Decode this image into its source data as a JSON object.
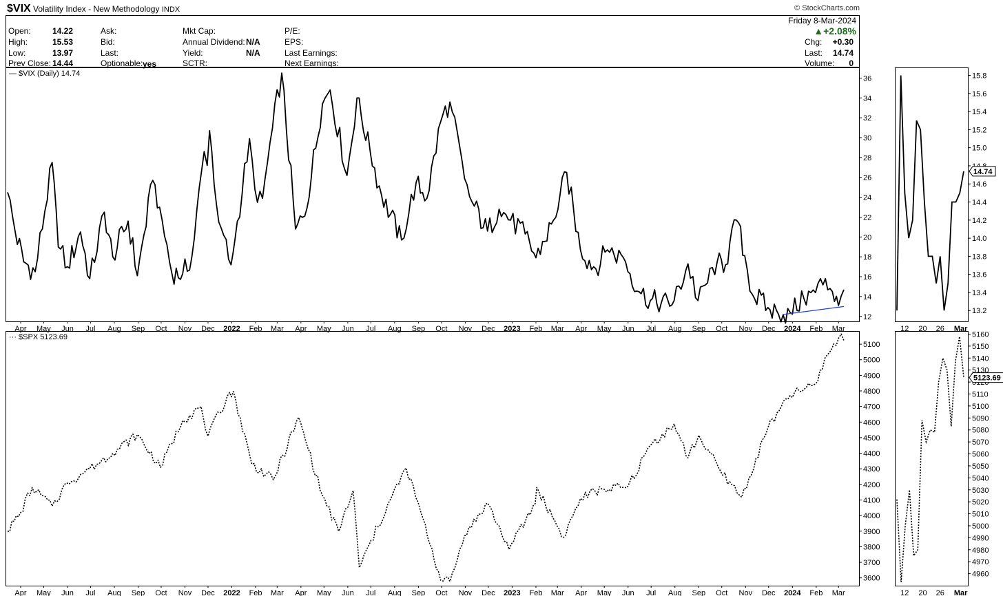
{
  "header": {
    "symbol": "$VIX",
    "name": "Volatility Index - New Methodology",
    "exchange": "INDX",
    "brand": "© StockCharts.com"
  },
  "quote": {
    "open_label": "Open:",
    "open": "14.22",
    "high_label": "High:",
    "high": "15.53",
    "low_label": "Low:",
    "low": "13.97",
    "prevclose_label": "Prev Close:",
    "prevclose": "14.44",
    "ask_label": "Ask:",
    "bid_label": "Bid:",
    "last_label": "Last:",
    "optionable_label": "Optionable:",
    "optionable": "yes",
    "mktcap_label": "Mkt Cap:",
    "div_label": "Annual Dividend:",
    "div": "N/A",
    "yield_label": "Yield:",
    "yield": "N/A",
    "sctr_label": "SCTR:",
    "pe_label": "P/E:",
    "eps_label": "EPS:",
    "lastearn_label": "Last Earnings:",
    "nextearn_label": "Next Earnings:",
    "date": "Friday  8-Mar-2024",
    "pct": "▲+2.08%",
    "chg_label": "Chg:",
    "chg": "+0.30",
    "last2_label": "Last:",
    "last2": "14.74",
    "volume_label": "Volume:",
    "volume": "0"
  },
  "chart_data": [
    {
      "type": "line",
      "legend": "$VIX (Daily) 14.74",
      "last_value_label": "14.74",
      "ylim": [
        11.5,
        37
      ],
      "yticks": [
        12,
        14,
        16,
        18,
        20,
        22,
        24,
        26,
        28,
        30,
        32,
        34,
        36
      ],
      "x_labels": [
        "Apr",
        "May",
        "Jun",
        "Jul",
        "Aug",
        "Sep",
        "Oct",
        "Nov",
        "Dec",
        "2022",
        "Feb",
        "Mar",
        "Apr",
        "May",
        "Jun",
        "Jul",
        "Aug",
        "Sep",
        "Oct",
        "Nov",
        "Dec",
        "2023",
        "Feb",
        "Mar",
        "Apr",
        "May",
        "Jun",
        "Jul",
        "Aug",
        "Sep",
        "Oct",
        "Nov",
        "Dec",
        "2024",
        "Feb",
        "Mar"
      ],
      "x_bold": [
        "2022",
        "2023",
        "2024"
      ],
      "x_start": "2021-03-15",
      "x_end": "2024-03-08",
      "series": [
        {
          "color": "#000000",
          "style": "solid",
          "points": [
            [
              "2021-03-15",
              24.5
            ],
            [
              "2021-03-25",
              20.5
            ],
            [
              "2021-04-05",
              17.5
            ],
            [
              "2021-04-20",
              16.5
            ],
            [
              "2021-05-12",
              27.5
            ],
            [
              "2021-05-20",
              19
            ],
            [
              "2021-06-01",
              17
            ],
            [
              "2021-06-18",
              20.5
            ],
            [
              "2021-06-30",
              15.8
            ],
            [
              "2021-07-19",
              22.5
            ],
            [
              "2021-07-30",
              18
            ],
            [
              "2021-08-19",
              21.6
            ],
            [
              "2021-08-31",
              16.1
            ],
            [
              "2021-09-20",
              25.7
            ],
            [
              "2021-09-29",
              23
            ],
            [
              "2021-10-15",
              16.3
            ],
            [
              "2021-10-29",
              16.3
            ],
            [
              "2021-11-10",
              18
            ],
            [
              "2021-11-26",
              28.6
            ],
            [
              "2021-11-30",
              27.2
            ],
            [
              "2021-12-03",
              30.7
            ],
            [
              "2021-12-15",
              21.5
            ],
            [
              "2021-12-31",
              17.2
            ],
            [
              "2022-01-05",
              19.7
            ],
            [
              "2022-01-24",
              29.9
            ],
            [
              "2022-01-31",
              24.8
            ],
            [
              "2022-02-10",
              23.9
            ],
            [
              "2022-02-23",
              31
            ],
            [
              "2022-03-07",
              36.5
            ],
            [
              "2022-03-25",
              20.8
            ],
            [
              "2022-04-06",
              22.1
            ],
            [
              "2022-04-29",
              33.4
            ],
            [
              "2022-05-09",
              34.8
            ],
            [
              "2022-05-31",
              26.2
            ],
            [
              "2022-06-13",
              34
            ],
            [
              "2022-06-30",
              28.7
            ],
            [
              "2022-07-15",
              24.2
            ],
            [
              "2022-08-10",
              19.7
            ],
            [
              "2022-08-29",
              25.5
            ],
            [
              "2022-09-12",
              23.9
            ],
            [
              "2022-09-30",
              31.6
            ],
            [
              "2022-10-12",
              33.6
            ],
            [
              "2022-10-31",
              25.9
            ],
            [
              "2022-11-10",
              23.5
            ],
            [
              "2022-11-30",
              20.6
            ],
            [
              "2022-12-15",
              22.8
            ],
            [
              "2022-12-30",
              21.7
            ],
            [
              "2023-01-18",
              20.3
            ],
            [
              "2023-02-01",
              17.9
            ],
            [
              "2023-02-24",
              21.7
            ],
            [
              "2023-03-13",
              26.5
            ],
            [
              "2023-03-31",
              18.7
            ],
            [
              "2023-04-20",
              16.8
            ],
            [
              "2023-05-05",
              18.7
            ],
            [
              "2023-05-26",
              17.9
            ],
            [
              "2023-06-15",
              14.5
            ],
            [
              "2023-06-30",
              13.6
            ],
            [
              "2023-07-14",
              13.3
            ],
            [
              "2023-07-31",
              13.6
            ],
            [
              "2023-08-18",
              17.3
            ],
            [
              "2023-08-31",
              13.6
            ],
            [
              "2023-09-25",
              17.5
            ],
            [
              "2023-10-06",
              17.2
            ],
            [
              "2023-10-20",
              21.7
            ],
            [
              "2023-10-31",
              18.1
            ],
            [
              "2023-11-10",
              14.2
            ],
            [
              "2023-11-30",
              12.9
            ],
            [
              "2023-12-14",
              12.2
            ],
            [
              "2023-12-29",
              12.4
            ],
            [
              "2024-01-16",
              13.8
            ],
            [
              "2024-01-31",
              14.4
            ],
            [
              "2024-02-13",
              15.8
            ],
            [
              "2024-02-22",
              14.5
            ],
            [
              "2024-03-01",
              13.1
            ],
            [
              "2024-03-08",
              14.7
            ]
          ]
        }
      ],
      "trendline": {
        "color": "#1f3fd6",
        "from": [
          "2023-12-20",
          12.2
        ],
        "to": [
          "2024-03-08",
          13.0
        ]
      }
    },
    {
      "type": "line",
      "legend": "$SPX 5123.69",
      "last_value_label": "5123.69",
      "ylim": [
        3550,
        5180
      ],
      "yticks": [
        3600,
        3700,
        3800,
        3900,
        4000,
        4100,
        4200,
        4300,
        4400,
        4500,
        4600,
        4700,
        4800,
        4900,
        5000,
        5100
      ],
      "x_labels": [
        "Apr",
        "May",
        "Jun",
        "Jul",
        "Aug",
        "Sep",
        "Oct",
        "Nov",
        "Dec",
        "2022",
        "Feb",
        "Mar",
        "Apr",
        "May",
        "Jun",
        "Jul",
        "Aug",
        "Sep",
        "Oct",
        "Nov",
        "Dec",
        "2023",
        "Feb",
        "Mar",
        "Apr",
        "May",
        "Jun",
        "Jul",
        "Aug",
        "Sep",
        "Oct",
        "Nov",
        "Dec",
        "2024",
        "Feb",
        "Mar"
      ],
      "x_bold": [
        "2022",
        "2023",
        "2024"
      ],
      "x_start": "2021-03-15",
      "x_end": "2024-03-08",
      "series": [
        {
          "color": "#000000",
          "style": "dotted",
          "points": [
            [
              "2021-03-15",
              3900
            ],
            [
              "2021-04-01",
              4020
            ],
            [
              "2021-04-16",
              4180
            ],
            [
              "2021-05-12",
              4060
            ],
            [
              "2021-05-31",
              4210
            ],
            [
              "2021-06-30",
              4300
            ],
            [
              "2021-07-30",
              4400
            ],
            [
              "2021-08-31",
              4520
            ],
            [
              "2021-09-30",
              4310
            ],
            [
              "2021-10-29",
              4610
            ],
            [
              "2021-11-22",
              4700
            ],
            [
              "2021-12-01",
              4510
            ],
            [
              "2021-12-29",
              4790
            ],
            [
              "2022-01-03",
              4796
            ],
            [
              "2022-01-27",
              4330
            ],
            [
              "2022-02-24",
              4230
            ],
            [
              "2022-03-29",
              4630
            ],
            [
              "2022-04-29",
              4130
            ],
            [
              "2022-05-20",
              3900
            ],
            [
              "2022-06-08",
              4160
            ],
            [
              "2022-06-16",
              3666
            ],
            [
              "2022-07-29",
              4130
            ],
            [
              "2022-08-16",
              4305
            ],
            [
              "2022-09-07",
              3980
            ],
            [
              "2022-09-30",
              3585
            ],
            [
              "2022-10-12",
              3577
            ],
            [
              "2022-10-31",
              3870
            ],
            [
              "2022-11-30",
              4080
            ],
            [
              "2022-12-28",
              3783
            ],
            [
              "2023-01-31",
              4077
            ],
            [
              "2023-02-02",
              4180
            ],
            [
              "2023-03-09",
              3860
            ],
            [
              "2023-03-31",
              4110
            ],
            [
              "2023-04-28",
              4170
            ],
            [
              "2023-05-31",
              4180
            ],
            [
              "2023-06-30",
              4450
            ],
            [
              "2023-07-31",
              4589
            ],
            [
              "2023-08-18",
              4370
            ],
            [
              "2023-09-01",
              4515
            ],
            [
              "2023-09-29",
              4288
            ],
            [
              "2023-10-27",
              4117
            ],
            [
              "2023-11-30",
              4560
            ],
            [
              "2023-12-29",
              4770
            ],
            [
              "2024-01-31",
              4845
            ],
            [
              "2024-02-15",
              5030
            ],
            [
              "2024-03-01",
              5137
            ],
            [
              "2024-03-08",
              5124
            ]
          ]
        }
      ]
    },
    {
      "type": "line",
      "legend": "",
      "ylim": [
        13.08,
        15.88
      ],
      "yticks": [
        13.2,
        13.4,
        13.6,
        13.8,
        14.0,
        14.2,
        14.4,
        14.6,
        14.8,
        15.0,
        15.2,
        15.4,
        15.6,
        15.8
      ],
      "last_value_label": "14.74",
      "x_labels": [
        "12",
        "20",
        "26",
        "Mar"
      ],
      "values": [
        13.2,
        15.8,
        14.5,
        14.0,
        14.2,
        15.3,
        15.2,
        14.4,
        13.8,
        13.8,
        13.5,
        13.8,
        13.2,
        13.5,
        14.4,
        14.4,
        14.5,
        14.74
      ]
    },
    {
      "type": "line",
      "legend": "",
      "ylim": [
        4950,
        5162
      ],
      "yticks": [
        4960,
        4970,
        4980,
        4990,
        5000,
        5010,
        5020,
        5030,
        5040,
        5050,
        5060,
        5070,
        5080,
        5090,
        5100,
        5110,
        5120,
        5130,
        5140,
        5150,
        5160
      ],
      "last_value_label": "5123.69",
      "x_labels": [
        "12",
        "20",
        "26",
        "Mar"
      ],
      "values": [
        5022,
        4953,
        5000,
        5030,
        4975,
        4980,
        5088,
        5070,
        5080,
        5078,
        5120,
        5140,
        5130,
        5083,
        5137,
        5158,
        5124
      ]
    }
  ]
}
